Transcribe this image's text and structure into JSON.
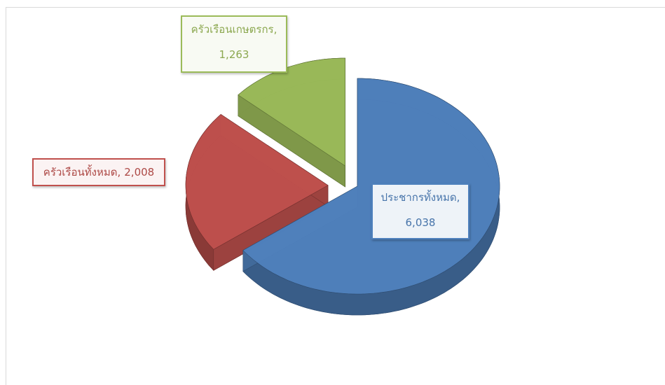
{
  "chart_data": {
    "type": "pie3d",
    "categories": [
      "ประชากรทั้งหมด",
      "ครัวเรือนทั้งหมด",
      "ครัวเรือนเกษตรกร"
    ],
    "values": [
      6038,
      2008,
      1263
    ],
    "value_labels": [
      "6,038",
      "2,008",
      "1,263"
    ],
    "data_label_separator": ",",
    "colors": [
      "#4f81bd",
      "#c0504d",
      "#9bbb59"
    ],
    "exploded": [
      false,
      true,
      true
    ]
  }
}
